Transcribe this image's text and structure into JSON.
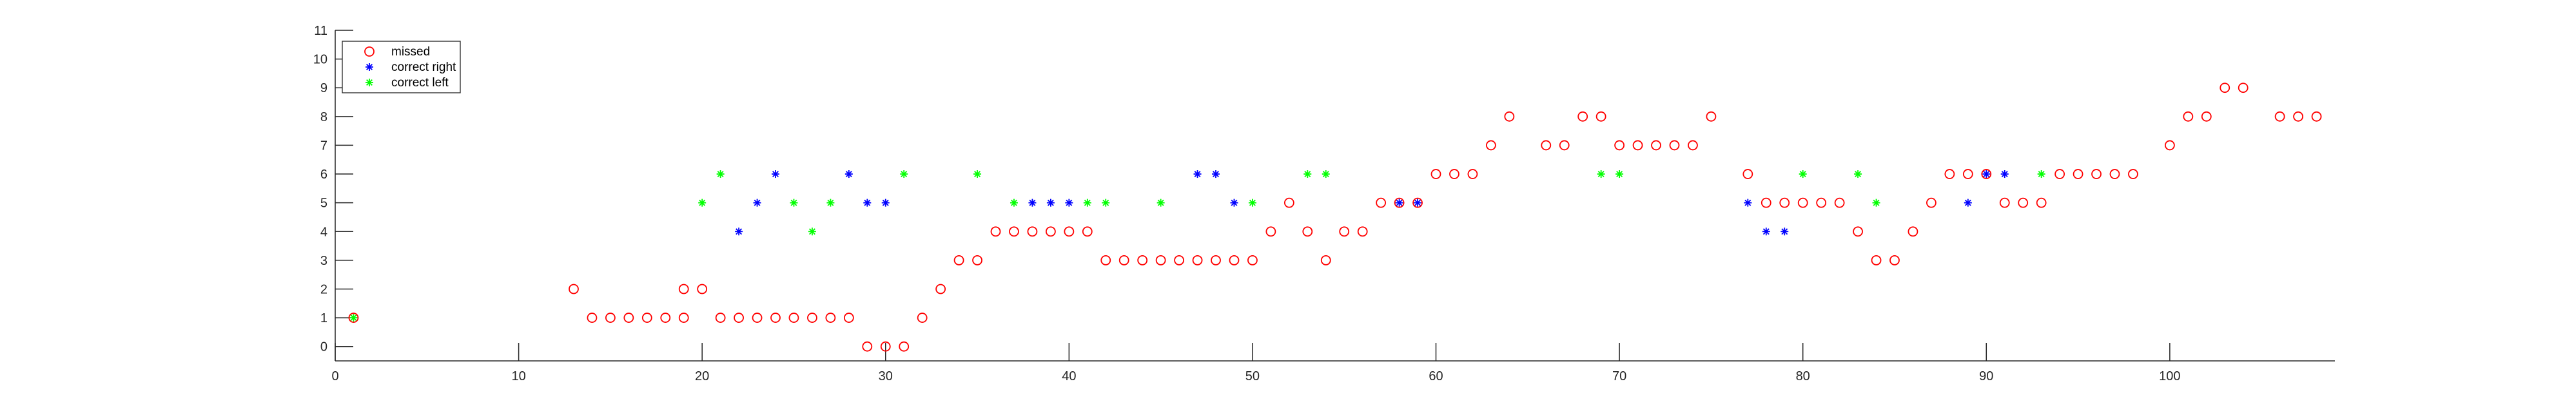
{
  "chart_data": {
    "type": "scatter",
    "title": "",
    "xlabel": "",
    "ylabel": "",
    "xlim": [
      0,
      109
    ],
    "ylim": [
      -0.5,
      11
    ],
    "xticks": [
      0,
      10,
      20,
      30,
      40,
      50,
      60,
      70,
      80,
      90,
      100
    ],
    "yticks": [
      0,
      1,
      2,
      3,
      4,
      5,
      6,
      7,
      8,
      9,
      10,
      11
    ],
    "grid": false,
    "legend_position": "top-left",
    "series": [
      {
        "name": "missed",
        "marker": "circle-open",
        "color": "#ff0000",
        "points": [
          [
            1,
            1
          ],
          [
            13,
            2
          ],
          [
            14,
            1
          ],
          [
            15,
            1
          ],
          [
            16,
            1
          ],
          [
            17,
            1
          ],
          [
            18,
            1
          ],
          [
            19,
            2
          ],
          [
            19,
            1
          ],
          [
            20,
            2
          ],
          [
            21,
            1
          ],
          [
            22,
            1
          ],
          [
            23,
            1
          ],
          [
            24,
            1
          ],
          [
            25,
            1
          ],
          [
            26,
            1
          ],
          [
            27,
            1
          ],
          [
            28,
            1
          ],
          [
            29,
            0
          ],
          [
            30,
            0
          ],
          [
            31,
            0
          ],
          [
            32,
            1
          ],
          [
            33,
            2
          ],
          [
            34,
            3
          ],
          [
            35,
            3
          ],
          [
            36,
            4
          ],
          [
            37,
            4
          ],
          [
            38,
            4
          ],
          [
            39,
            4
          ],
          [
            40,
            4
          ],
          [
            41,
            4
          ],
          [
            42,
            3
          ],
          [
            43,
            3
          ],
          [
            44,
            3
          ],
          [
            45,
            3
          ],
          [
            46,
            3
          ],
          [
            47,
            3
          ],
          [
            48,
            3
          ],
          [
            49,
            3
          ],
          [
            50,
            3
          ],
          [
            51,
            4
          ],
          [
            52,
            5
          ],
          [
            53,
            4
          ],
          [
            54,
            3
          ],
          [
            55,
            4
          ],
          [
            56,
            4
          ],
          [
            57,
            5
          ],
          [
            58,
            5
          ],
          [
            59,
            5
          ],
          [
            60,
            6
          ],
          [
            61,
            6
          ],
          [
            62,
            6
          ],
          [
            63,
            7
          ],
          [
            64,
            8
          ],
          [
            66,
            7
          ],
          [
            67,
            7
          ],
          [
            68,
            8
          ],
          [
            69,
            8
          ],
          [
            70,
            7
          ],
          [
            71,
            7
          ],
          [
            72,
            7
          ],
          [
            73,
            7
          ],
          [
            74,
            7
          ],
          [
            75,
            8
          ],
          [
            77,
            6
          ],
          [
            78,
            5
          ],
          [
            79,
            5
          ],
          [
            80,
            5
          ],
          [
            81,
            5
          ],
          [
            82,
            5
          ],
          [
            83,
            4
          ],
          [
            84,
            3
          ],
          [
            85,
            3
          ],
          [
            86,
            4
          ],
          [
            87,
            5
          ],
          [
            88,
            6
          ],
          [
            89,
            6
          ],
          [
            90,
            6
          ],
          [
            91,
            5
          ],
          [
            92,
            5
          ],
          [
            93,
            5
          ],
          [
            94,
            6
          ],
          [
            95,
            6
          ],
          [
            96,
            6
          ],
          [
            97,
            6
          ],
          [
            98,
            6
          ],
          [
            100,
            7
          ],
          [
            101,
            8
          ],
          [
            102,
            8
          ],
          [
            103,
            9
          ],
          [
            104,
            9
          ],
          [
            106,
            8
          ],
          [
            107,
            8
          ],
          [
            108,
            8
          ]
        ]
      },
      {
        "name": "correct right",
        "marker": "star",
        "color": "#0000ff",
        "points": [
          [
            22,
            4
          ],
          [
            23,
            5
          ],
          [
            24,
            6
          ],
          [
            28,
            6
          ],
          [
            29,
            5
          ],
          [
            30,
            5
          ],
          [
            38,
            5
          ],
          [
            39,
            5
          ],
          [
            40,
            5
          ],
          [
            47,
            6
          ],
          [
            48,
            6
          ],
          [
            49,
            5
          ],
          [
            58,
            5
          ],
          [
            59,
            5
          ],
          [
            77,
            5
          ],
          [
            78,
            4
          ],
          [
            79,
            4
          ],
          [
            89,
            5
          ],
          [
            90,
            6
          ],
          [
            91,
            6
          ]
        ]
      },
      {
        "name": "correct left",
        "marker": "star",
        "color": "#00ff00",
        "points": [
          [
            1,
            1
          ],
          [
            20,
            5
          ],
          [
            21,
            6
          ],
          [
            25,
            5
          ],
          [
            26,
            4
          ],
          [
            27,
            5
          ],
          [
            31,
            6
          ],
          [
            35,
            6
          ],
          [
            37,
            5
          ],
          [
            41,
            5
          ],
          [
            42,
            5
          ],
          [
            45,
            5
          ],
          [
            50,
            5
          ],
          [
            53,
            6
          ],
          [
            54,
            6
          ],
          [
            69,
            6
          ],
          [
            70,
            6
          ],
          [
            80,
            6
          ],
          [
            83,
            6
          ],
          [
            84,
            5
          ],
          [
            93,
            6
          ]
        ]
      }
    ]
  }
}
